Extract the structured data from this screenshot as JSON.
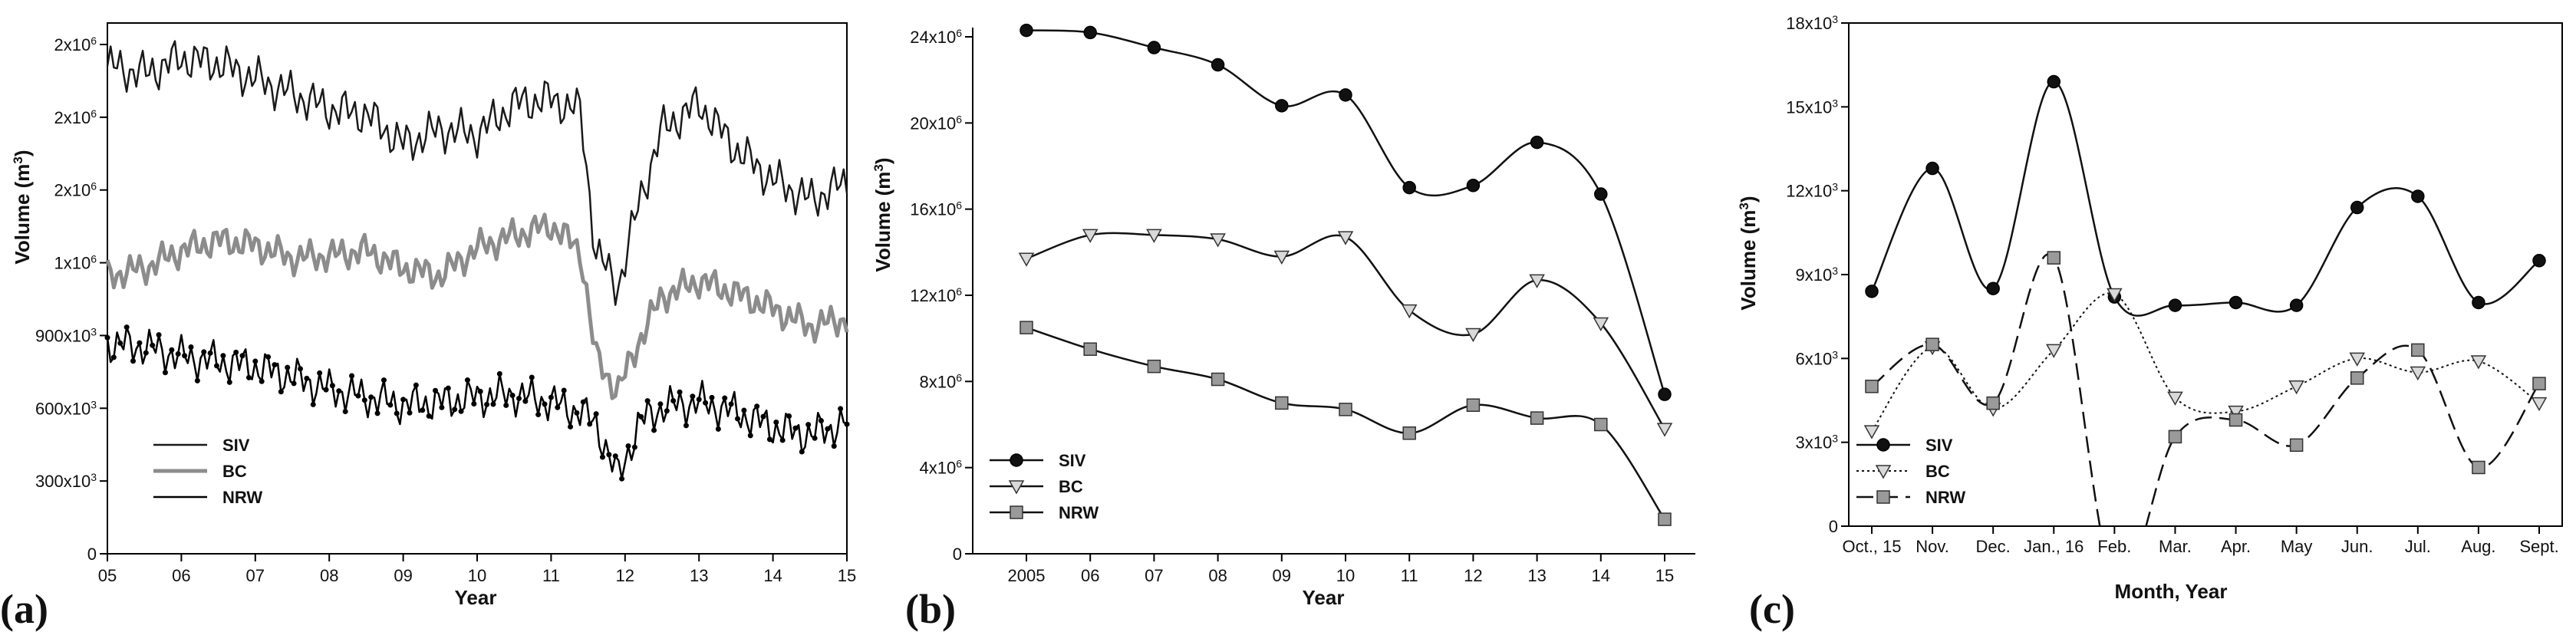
{
  "chart_data": [
    {
      "panel": "(a)",
      "type": "line",
      "xlabel": "Year",
      "ylabel": "Volume (m",
      "ylabel_sup": "3",
      "ylabel_close": ")",
      "x_ticks": [
        "05",
        "06",
        "07",
        "08",
        "09",
        "10",
        "11",
        "12",
        "13",
        "14",
        "15"
      ],
      "y_ticks": [
        {
          "base": "0",
          "exp": ""
        },
        {
          "base": "300x10",
          "exp": "3"
        },
        {
          "base": "600x10",
          "exp": "3"
        },
        {
          "base": "900x10",
          "exp": "3"
        },
        {
          "base": "1x10",
          "exp": "6"
        },
        {
          "base": "2x10",
          "exp": "6"
        },
        {
          "base": "2x10",
          "exp": "6"
        },
        {
          "base": "2x10",
          "exp": "6"
        }
      ],
      "xlim": [
        5,
        15
      ],
      "ylim": [
        0,
        2100000
      ],
      "legend": "bottom-left",
      "colors": {
        "SIV": "#1a1a1a",
        "BC": "#8c8c8c",
        "NRW": "#000000"
      },
      "series": [
        {
          "name": "SIV",
          "x": [
            5.0,
            5.5,
            6.0,
            6.5,
            7.0,
            7.5,
            8.0,
            8.5,
            9.0,
            9.5,
            10.0,
            10.5,
            11.0,
            11.4,
            11.6,
            11.9,
            12.2,
            12.5,
            13.0,
            13.5,
            14.0,
            14.5,
            15.0
          ],
          "y": [
            1930000,
            1900000,
            1960000,
            1940000,
            1880000,
            1820000,
            1760000,
            1740000,
            1620000,
            1680000,
            1660000,
            1780000,
            1800000,
            1750000,
            1200000,
            1050000,
            1400000,
            1680000,
            1780000,
            1600000,
            1480000,
            1400000,
            1470000
          ]
        },
        {
          "name": "BC",
          "x": [
            5.0,
            5.5,
            6.0,
            6.5,
            7.0,
            7.5,
            8.0,
            8.5,
            9.0,
            9.5,
            10.0,
            10.5,
            11.0,
            11.4,
            11.6,
            11.9,
            12.2,
            12.5,
            13.0,
            13.5,
            14.0,
            14.5,
            15.0
          ],
          "y": [
            1100000,
            1130000,
            1200000,
            1240000,
            1220000,
            1170000,
            1180000,
            1200000,
            1130000,
            1100000,
            1210000,
            1260000,
            1300000,
            1200000,
            780000,
            640000,
            850000,
            1020000,
            1080000,
            1030000,
            970000,
            900000,
            930000
          ]
        },
        {
          "name": "NRW",
          "x": [
            5.0,
            5.5,
            6.0,
            6.5,
            7.0,
            7.5,
            8.0,
            8.5,
            9.0,
            9.5,
            10.0,
            10.5,
            11.0,
            11.4,
            11.6,
            11.9,
            12.2,
            12.5,
            13.0,
            13.5,
            14.0,
            14.5,
            15.0
          ],
          "y": [
            830000,
            820000,
            780000,
            760000,
            740000,
            700000,
            650000,
            620000,
            590000,
            600000,
            620000,
            630000,
            600000,
            560000,
            520000,
            300000,
            520000,
            580000,
            600000,
            560000,
            500000,
            470000,
            520000
          ]
        }
      ]
    },
    {
      "panel": "(b)",
      "type": "line",
      "xlabel": "Year",
      "ylabel": "Volume (m",
      "ylabel_sup": "3",
      "ylabel_close": ")",
      "categories": [
        "2005",
        "06",
        "07",
        "08",
        "09",
        "10",
        "11",
        "12",
        "13",
        "14",
        "15"
      ],
      "y_ticks": [
        {
          "base": "0",
          "exp": ""
        },
        {
          "base": "4x10",
          "exp": "6"
        },
        {
          "base": "8x10",
          "exp": "6"
        },
        {
          "base": "12x10",
          "exp": "6"
        },
        {
          "base": "16x10",
          "exp": "6"
        },
        {
          "base": "20x10",
          "exp": "6"
        },
        {
          "base": "24x10",
          "exp": "6"
        }
      ],
      "ylim": [
        0,
        24000000
      ],
      "legend": "bottom-left",
      "series": [
        {
          "name": "SIV",
          "values": [
            24300000,
            24200000,
            23500000,
            22700000,
            20800000,
            21300000,
            17000000,
            17100000,
            19100000,
            16700000,
            7400000
          ]
        },
        {
          "name": "BC",
          "values": [
            13700000,
            14800000,
            14800000,
            14600000,
            13800000,
            14700000,
            11300000,
            10200000,
            12700000,
            10700000,
            5800000
          ]
        },
        {
          "name": "NRW",
          "values": [
            10500000,
            9500000,
            8700000,
            8100000,
            7000000,
            6700000,
            5600000,
            6900000,
            6300000,
            6000000,
            1600000
          ]
        }
      ]
    },
    {
      "panel": "(c)",
      "type": "line",
      "xlabel": "Month, Year",
      "ylabel": "Volume (m",
      "ylabel_sup": "3",
      "ylabel_close": ")",
      "categories": [
        "Oct., 15",
        "Nov.",
        "Dec.",
        "Jan., 16",
        "Feb.",
        "Mar.",
        "Apr.",
        "May",
        "Jun.",
        "Jul.",
        "Aug.",
        "Sept."
      ],
      "y_ticks": [
        {
          "base": "0",
          "exp": ""
        },
        {
          "base": "3x10",
          "exp": "3"
        },
        {
          "base": "6x10",
          "exp": "3"
        },
        {
          "base": "9x10",
          "exp": "3"
        },
        {
          "base": "12x10",
          "exp": "3"
        },
        {
          "base": "15x10",
          "exp": "3"
        },
        {
          "base": "18x10",
          "exp": "3"
        }
      ],
      "ylim": [
        0,
        18000
      ],
      "legend": "bottom-left",
      "series": [
        {
          "name": "SIV",
          "values": [
            8400,
            12800,
            8500,
            15900,
            8200,
            7900,
            8000,
            7900,
            11400,
            11800,
            8000,
            9500
          ]
        },
        {
          "name": "BC",
          "values": [
            3400,
            6400,
            4200,
            6300,
            8300,
            4600,
            4100,
            5000,
            6000,
            5500,
            5900,
            4400
          ]
        },
        {
          "name": "NRW",
          "values": [
            5000,
            6500,
            4400,
            9600,
            -2000,
            3200,
            3800,
            2900,
            5300,
            6300,
            2100,
            5100
          ]
        }
      ]
    }
  ]
}
